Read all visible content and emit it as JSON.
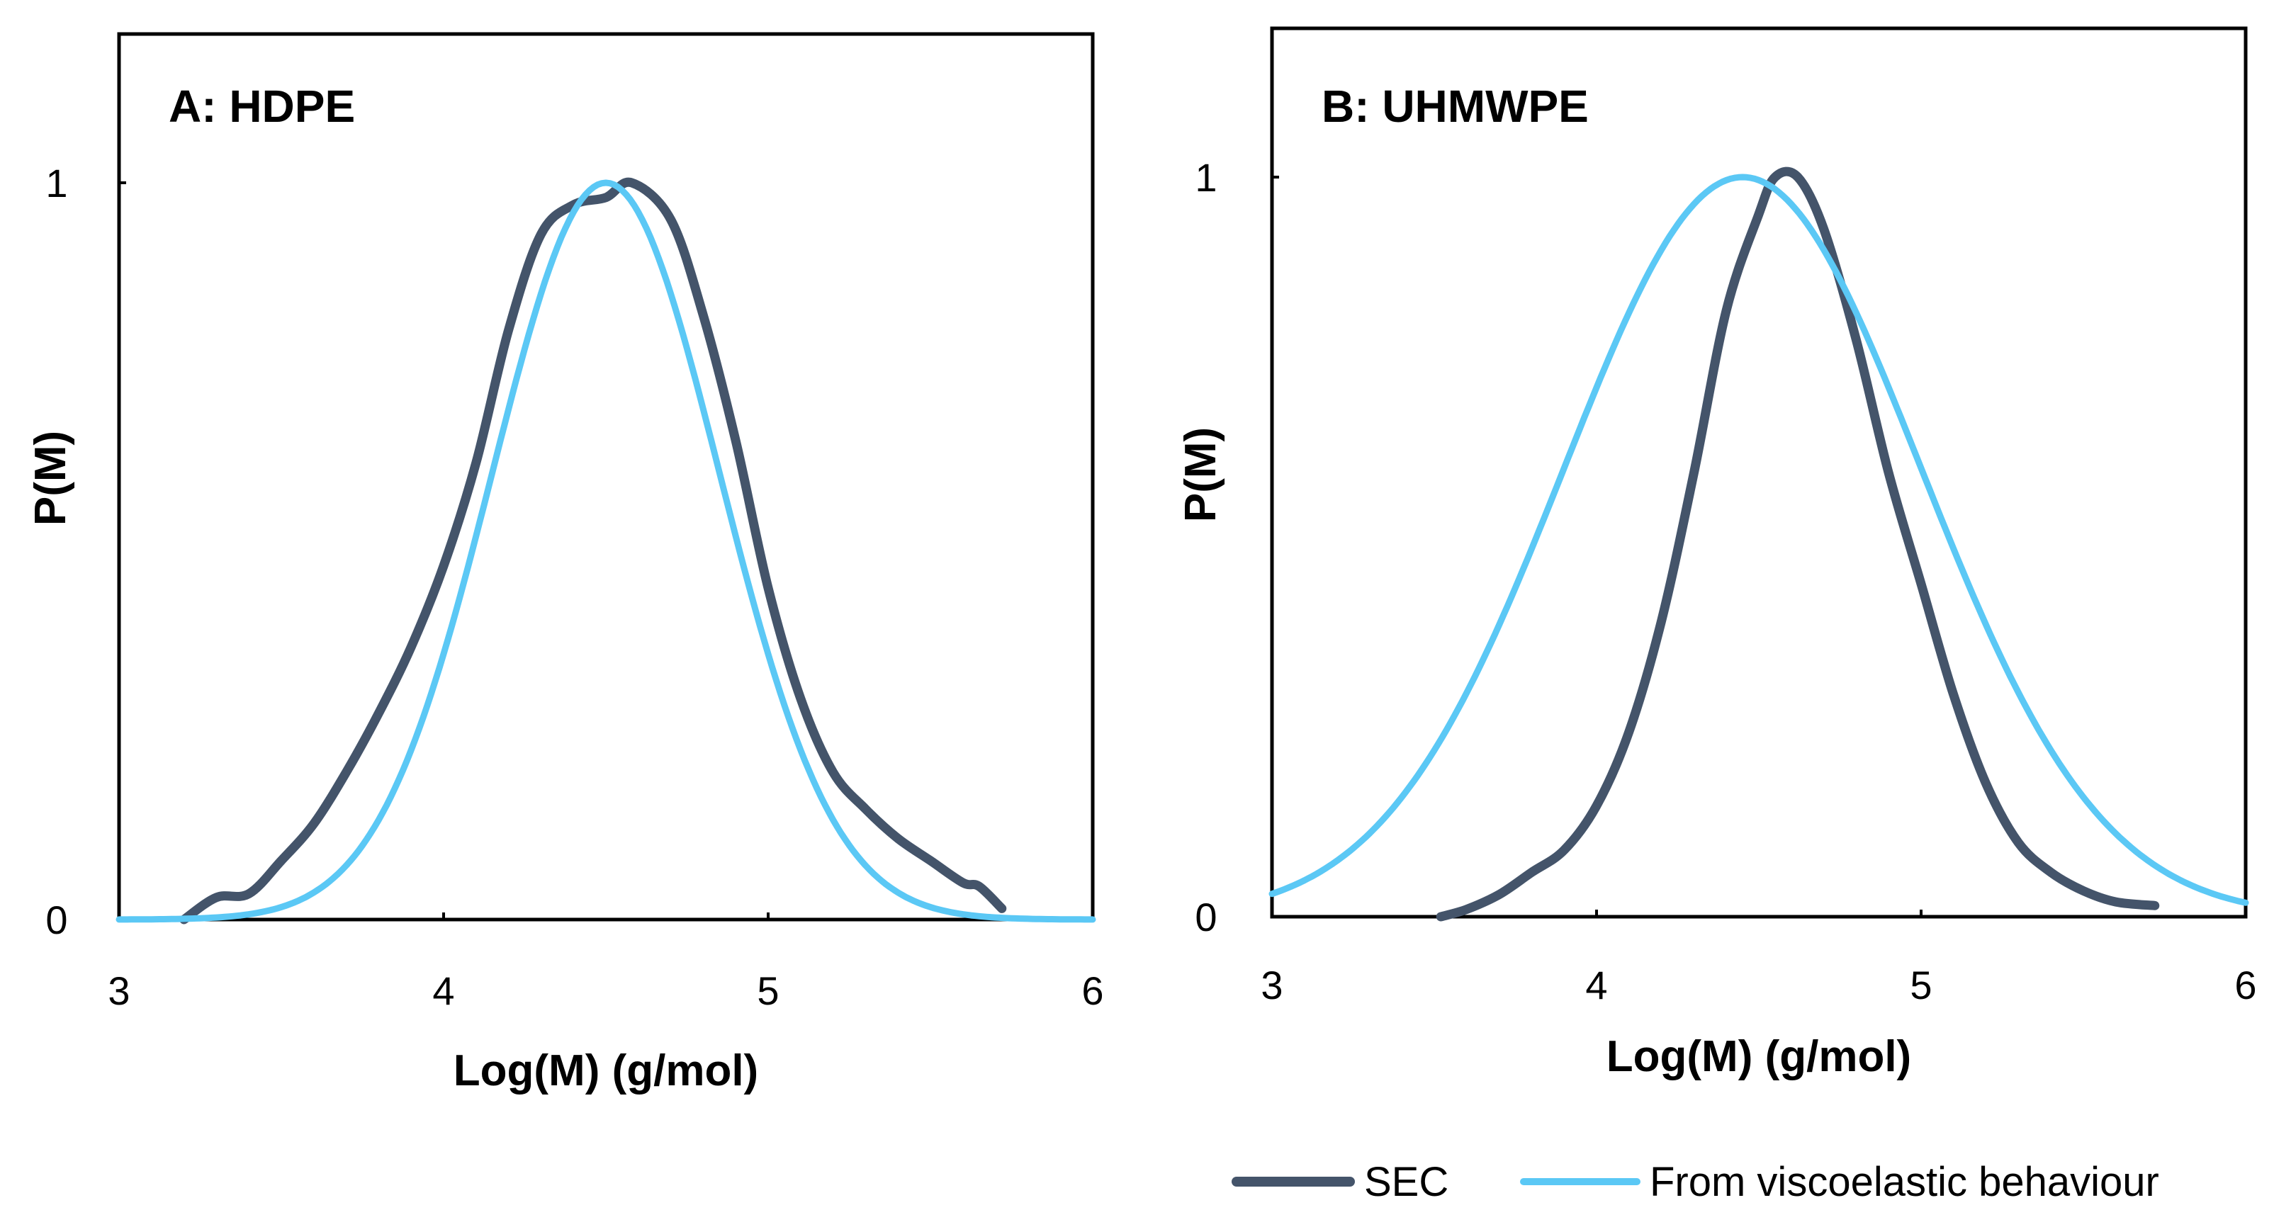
{
  "colors": {
    "sec": "#44546a",
    "visco": "#5bc8f5",
    "axis": "#000000"
  },
  "legend": {
    "sec_label": "SEC",
    "visco_label": "From viscoelastic behaviour"
  },
  "chart_data": [
    {
      "type": "line",
      "title": "A: HDPE",
      "xlabel": "Log(M) (g/mol)",
      "ylabel": "P(M)",
      "xlim": [
        3,
        6
      ],
      "ylim": [
        0,
        1.2
      ],
      "xticks": [
        "3",
        "4",
        "5",
        "6"
      ],
      "yticks": [
        "0",
        "1"
      ],
      "series": [
        {
          "name": "SEC",
          "x": [
            3.2,
            3.3,
            3.4,
            3.5,
            3.6,
            3.7,
            3.8,
            3.9,
            4.0,
            4.1,
            4.2,
            4.3,
            4.4,
            4.5,
            4.58,
            4.7,
            4.8,
            4.9,
            5.0,
            5.1,
            5.2,
            5.3,
            5.4,
            5.5,
            5.6,
            5.65,
            5.72
          ],
          "y": [
            0.0,
            0.03,
            0.035,
            0.08,
            0.13,
            0.2,
            0.28,
            0.37,
            0.48,
            0.62,
            0.8,
            0.93,
            0.97,
            0.98,
            1.0,
            0.95,
            0.82,
            0.65,
            0.45,
            0.3,
            0.2,
            0.15,
            0.11,
            0.08,
            0.05,
            0.045,
            0.015
          ]
        },
        {
          "name": "From viscoelastic behaviour",
          "curve": "gaussian",
          "mean": 4.5,
          "sd": 0.35,
          "peak": 1.0,
          "x_range": [
            3,
            6
          ]
        }
      ]
    },
    {
      "type": "line",
      "title": "B: UHMWPE",
      "xlabel": "Log(M) (g/mol)",
      "ylabel": "P(M)",
      "xlim": [
        3,
        6
      ],
      "ylim": [
        0,
        1.2
      ],
      "xticks": [
        "3",
        "4",
        "5",
        "6"
      ],
      "yticks": [
        "0",
        "1"
      ],
      "series": [
        {
          "name": "SEC",
          "x": [
            3.52,
            3.6,
            3.7,
            3.8,
            3.9,
            4.0,
            4.1,
            4.2,
            4.3,
            4.4,
            4.5,
            4.55,
            4.62,
            4.7,
            4.8,
            4.9,
            5.0,
            5.1,
            5.2,
            5.3,
            5.4,
            5.5,
            5.6,
            5.72
          ],
          "y": [
            0.0,
            0.01,
            0.03,
            0.06,
            0.09,
            0.15,
            0.25,
            0.4,
            0.6,
            0.82,
            0.95,
            1.0,
            1.0,
            0.93,
            0.78,
            0.6,
            0.45,
            0.3,
            0.18,
            0.1,
            0.06,
            0.035,
            0.02,
            0.015
          ]
        },
        {
          "name": "From viscoelastic behaviour",
          "curve": "gaussian",
          "mean": 4.45,
          "sd": 0.55,
          "peak": 1.0,
          "x_range": [
            3,
            6
          ]
        }
      ]
    }
  ]
}
